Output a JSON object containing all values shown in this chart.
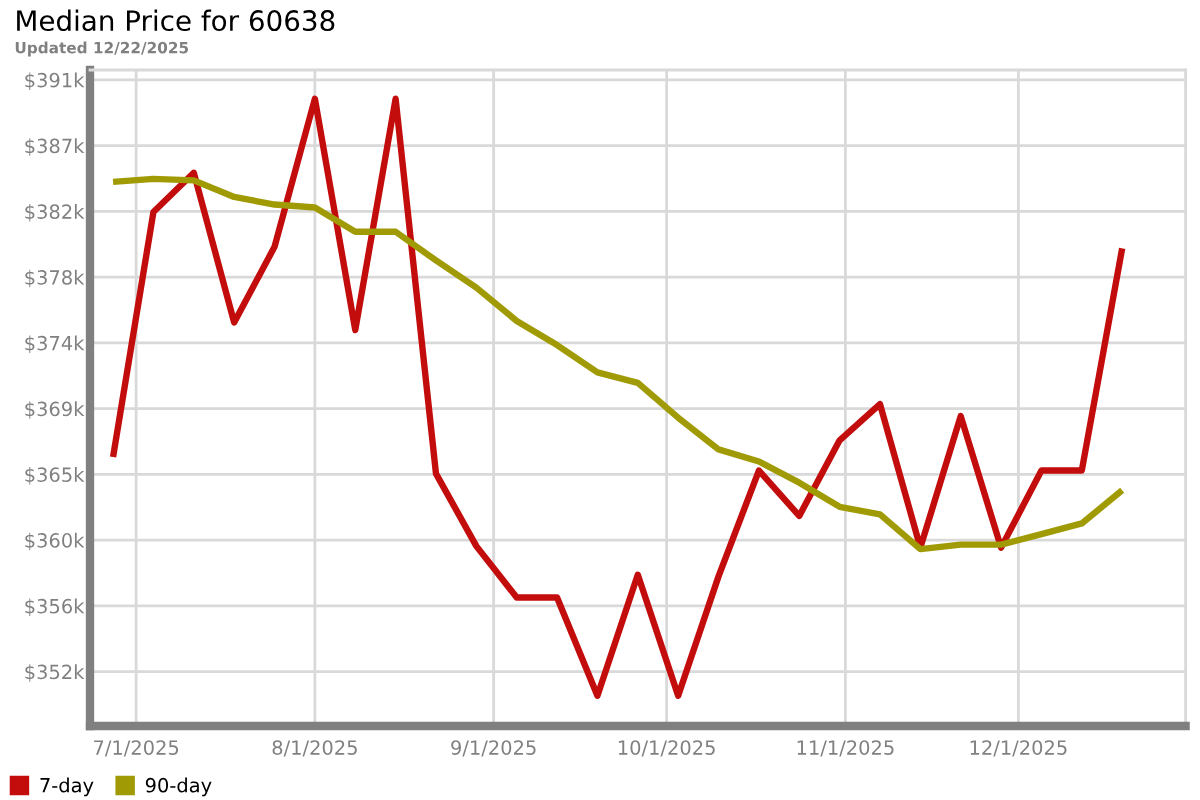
{
  "chart_data": {
    "type": "line",
    "title": "Median Price for 60638",
    "subtitle": "Updated 12/22/2025",
    "x": [
      "2025-06-27",
      "2025-07-04",
      "2025-07-11",
      "2025-07-18",
      "2025-07-25",
      "2025-08-01",
      "2025-08-08",
      "2025-08-15",
      "2025-08-22",
      "2025-08-29",
      "2025-09-05",
      "2025-09-12",
      "2025-09-19",
      "2025-09-26",
      "2025-10-03",
      "2025-10-10",
      "2025-10-17",
      "2025-10-24",
      "2025-10-31",
      "2025-11-07",
      "2025-11-14",
      "2025-11-21",
      "2025-11-28",
      "2025-12-05",
      "2025-12-12",
      "2025-12-19"
    ],
    "series": [
      {
        "name": "7-day",
        "color": "#c30d0d",
        "values": [
          366.0,
          382.2,
          384.8,
          374.9,
          379.9,
          389.7,
          374.4,
          389.7,
          364.9,
          360.1,
          356.7,
          356.7,
          350.2,
          358.2,
          350.2,
          358.1,
          365.1,
          362.1,
          367.1,
          369.5,
          360.0,
          368.7,
          360.0,
          365.1,
          365.1,
          379.8
        ]
      },
      {
        "name": "90-day",
        "color": "#a09b05",
        "values": [
          384.2,
          384.4,
          384.3,
          383.2,
          382.7,
          382.5,
          380.9,
          380.9,
          379.0,
          377.2,
          375.0,
          373.4,
          371.6,
          370.9,
          368.6,
          366.5,
          365.7,
          364.3,
          362.7,
          362.2,
          359.9,
          360.2,
          360.2,
          360.9,
          361.6,
          363.8
        ]
      }
    ],
    "xlim": [
      "2025-06-23",
      "2025-12-30"
    ],
    "xticks": [
      {
        "value": "2025-07-01",
        "label": "7/1/2025"
      },
      {
        "value": "2025-08-01",
        "label": "8/1/2025"
      },
      {
        "value": "2025-09-01",
        "label": "9/1/2025"
      },
      {
        "value": "2025-10-01",
        "label": "10/1/2025"
      },
      {
        "value": "2025-11-01",
        "label": "11/1/2025"
      },
      {
        "value": "2025-12-01",
        "label": "12/1/2025"
      }
    ],
    "ylim": [
      348.2,
      391.6
    ],
    "yticks": [
      {
        "value": 351.8,
        "label": "$352k"
      },
      {
        "value": 356.15,
        "label": "$356k"
      },
      {
        "value": 360.5,
        "label": "$360k"
      },
      {
        "value": 364.85,
        "label": "$365k"
      },
      {
        "value": 369.2,
        "label": "$369k"
      },
      {
        "value": 373.55,
        "label": "$374k"
      },
      {
        "value": 377.9,
        "label": "$378k"
      },
      {
        "value": 382.25,
        "label": "$382k"
      },
      {
        "value": 386.6,
        "label": "$387k"
      },
      {
        "value": 390.95,
        "label": "$391k"
      }
    ],
    "grid": true,
    "legend": "bottom left",
    "marker": "none",
    "line_style": "solid"
  }
}
